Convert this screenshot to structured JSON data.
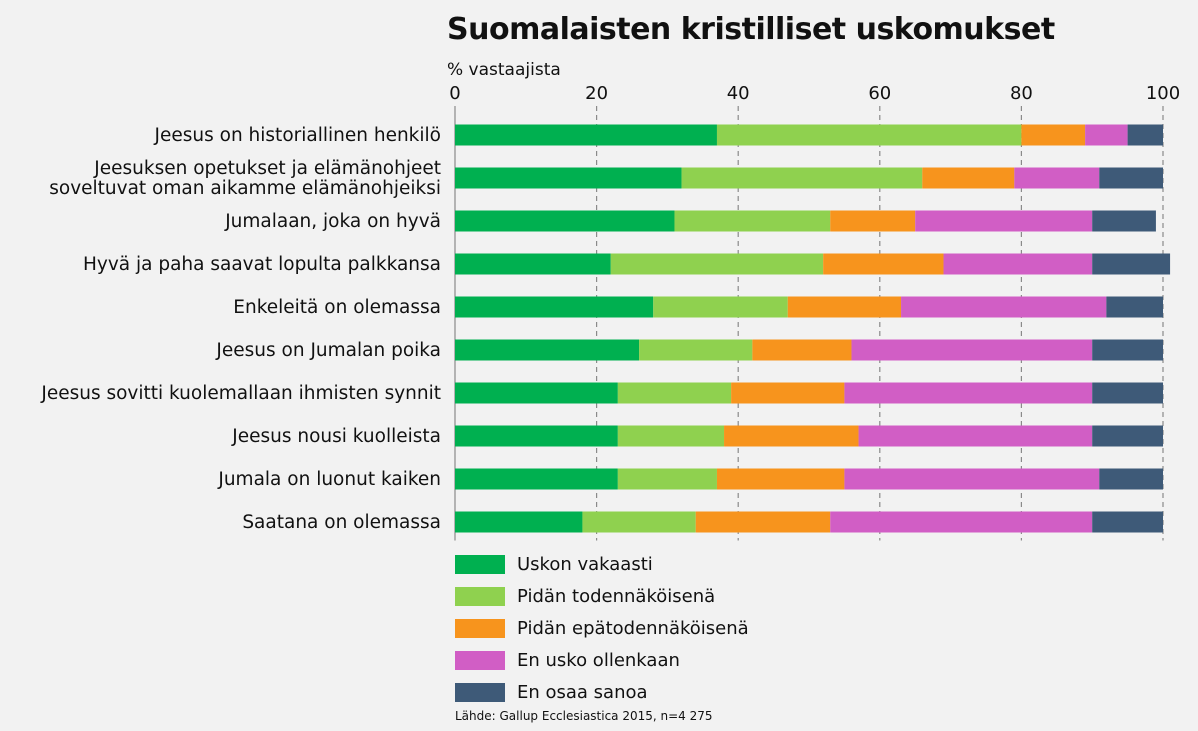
{
  "chart_data": {
    "type": "bar",
    "orientation": "horizontal",
    "stacked": true,
    "title": "Suomalaisten kristilliset uskomukset",
    "subtitle": "% vastaajista",
    "xlim": [
      0,
      100
    ],
    "xticks": [
      0,
      20,
      40,
      60,
      80,
      100
    ],
    "grid": true,
    "legend_position": "bottom",
    "categories": [
      "Jeesus on historiallinen henkilö",
      "Jeesuksen opetukset ja elämänohjeet\nsoveltuvat oman aikamme elämänohjeiksi",
      "Jumalaan, joka on hyvä",
      "Hyvä ja paha saavat lopulta palkkansa",
      "Enkeleitä on olemassa",
      "Jeesus on Jumalan poika",
      "Jeesus sovitti kuolemallaan ihmisten synnit",
      "Jeesus nousi kuolleista",
      "Jumala on luonut kaiken",
      "Saatana on olemassa"
    ],
    "series": [
      {
        "name": "Uskon vakaasti",
        "color": "#00b050",
        "values": [
          37,
          32,
          31,
          22,
          28,
          26,
          23,
          23,
          23,
          18
        ]
      },
      {
        "name": "Pidän todennäköisenä",
        "color": "#8fd14f",
        "values": [
          43,
          34,
          22,
          30,
          19,
          16,
          16,
          15,
          14,
          16
        ]
      },
      {
        "name": "Pidän epätodennäköisenä",
        "color": "#f7941d",
        "values": [
          9,
          13,
          12,
          17,
          16,
          14,
          16,
          19,
          18,
          19
        ]
      },
      {
        "name": "En usko ollenkaan",
        "color": "#d15ec5",
        "values": [
          6,
          12,
          25,
          21,
          29,
          34,
          35,
          33,
          36,
          37
        ]
      },
      {
        "name": "En osaa sanoa",
        "color": "#3e5a78",
        "values": [
          5,
          9,
          9,
          11,
          8,
          10,
          10,
          10,
          9,
          10
        ]
      }
    ],
    "source": "Lähde: Gallup Ecclesiastica 2015, n=4 275"
  }
}
